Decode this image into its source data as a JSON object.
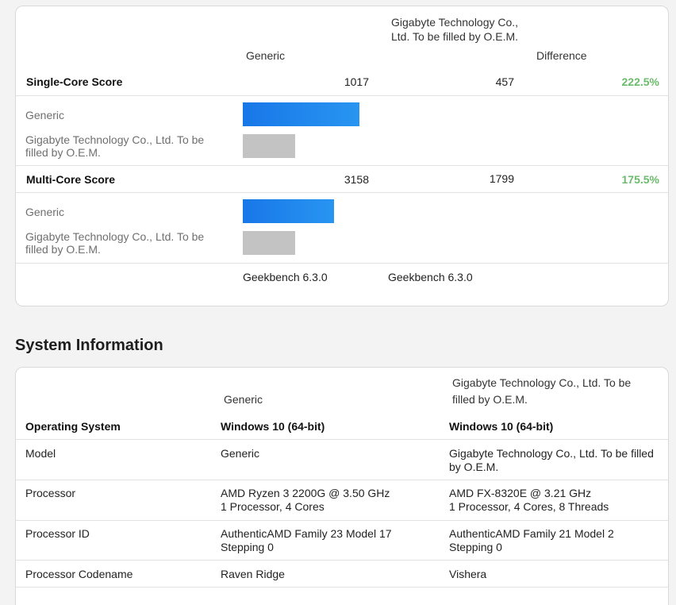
{
  "benchmark": {
    "col_generic": "Generic",
    "col_other": "Gigabyte Technology Co., Ltd. To be filled by O.E.M.",
    "col_difference": "Difference",
    "single": {
      "label": "Single-Core Score",
      "generic": "1017",
      "other": "457",
      "difference": "222.5%",
      "bar_generic_fraction": 1.0,
      "bar_other_fraction": 0.449
    },
    "multi": {
      "label": "Multi-Core Score",
      "generic": "3158",
      "other": "1799",
      "difference": "175.5%",
      "bar_generic_fraction": 1.0,
      "bar_other_fraction": 0.57
    },
    "bar_label_generic": "Generic",
    "bar_label_other": "Gigabyte Technology Co., Ltd. To be filled by O.E.M.",
    "version_generic": "Geekbench 6.3.0",
    "version_other": "Geekbench 6.3.0"
  },
  "system": {
    "title": "System Information",
    "col_generic": "Generic",
    "col_other": "Gigabyte Technology Co., Ltd. To be filled by O.E.M.",
    "os_label": "Operating System",
    "os_generic": "Windows 10 (64-bit)",
    "os_other": "Windows 10 (64-bit)",
    "rows": [
      {
        "label": "Model",
        "generic": "Generic",
        "other": "Gigabyte Technology Co., Ltd. To be filled by O.E.M."
      },
      {
        "label": "Processor",
        "generic": "AMD Ryzen 3 2200G @ 3.50 GHz\n1 Processor, 4 Cores",
        "other": "AMD FX-8320E @ 3.21 GHz\n1 Processor, 4 Cores, 8 Threads"
      },
      {
        "label": "Processor ID",
        "generic": "AuthenticAMD Family 23 Model 17 Stepping 0",
        "other": "AuthenticAMD Family 21 Model 2 Stepping 0"
      },
      {
        "label": "Processor Codename",
        "generic": "Raven Ridge",
        "other": "Vishera"
      }
    ]
  }
}
